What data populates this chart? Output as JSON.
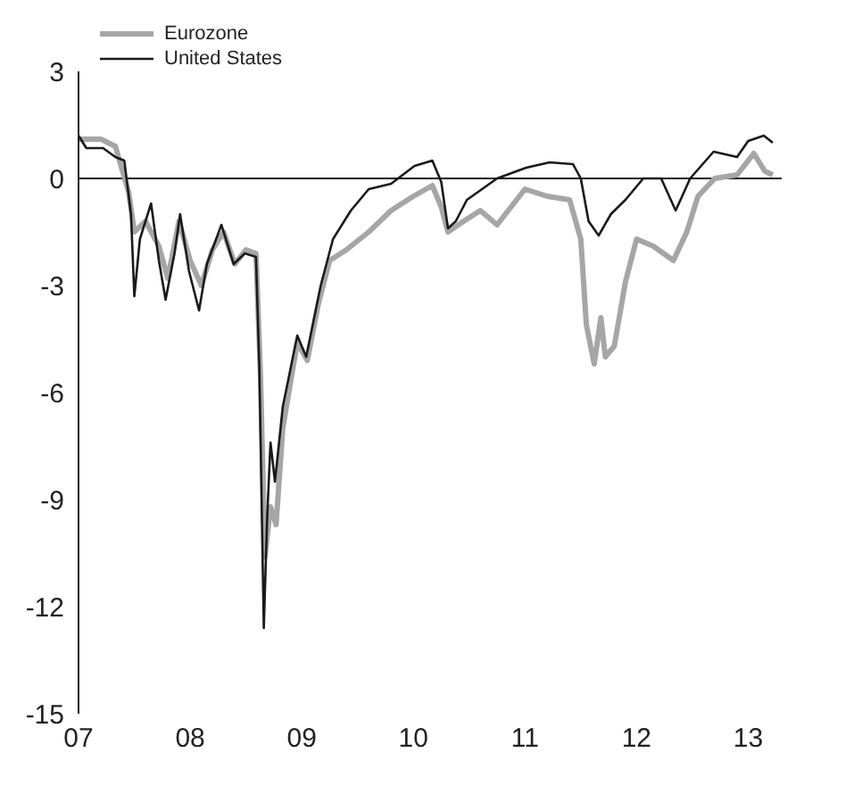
{
  "chart_data": {
    "type": "line",
    "xlim": [
      2007,
      2013.3
    ],
    "xticks": [
      {
        "value": 2007,
        "label": "07"
      },
      {
        "value": 2008,
        "label": "08"
      },
      {
        "value": 2009,
        "label": "09"
      },
      {
        "value": 2010,
        "label": "10"
      },
      {
        "value": 2011,
        "label": "11"
      },
      {
        "value": 2012,
        "label": "12"
      },
      {
        "value": 2013,
        "label": "13"
      }
    ],
    "ylim": [
      -15,
      3
    ],
    "yticks": [
      -15,
      -12,
      -9,
      -6,
      -3,
      0,
      3
    ],
    "grid": false,
    "legend": "top left",
    "marker": "none",
    "ref_lines": [
      {
        "axis": "y",
        "value": 0,
        "color": "#1a1a1a"
      }
    ],
    "series": [
      {
        "name": "Eurozone",
        "color": "#a6a6a6",
        "x": [
          2007.0,
          2007.2,
          2007.33,
          2007.45,
          2007.5,
          2007.6,
          2007.72,
          2007.8,
          2007.9,
          2008.0,
          2008.1,
          2008.2,
          2008.3,
          2008.4,
          2008.5,
          2008.59,
          2008.63,
          2008.67,
          2008.72,
          2008.77,
          2008.83,
          2008.96,
          2009.05,
          2009.15,
          2009.25,
          2009.4,
          2009.6,
          2009.8,
          2010.0,
          2010.17,
          2010.25,
          2010.31,
          2010.45,
          2010.6,
          2010.75,
          2010.9,
          2011.0,
          2011.2,
          2011.4,
          2011.5,
          2011.55,
          2011.62,
          2011.68,
          2011.72,
          2011.8,
          2011.9,
          2012.0,
          2012.15,
          2012.33,
          2012.45,
          2012.55,
          2012.7,
          2012.9,
          2013.05,
          2013.15,
          2013.22
        ],
        "values": [
          1.1,
          1.1,
          0.9,
          -0.4,
          -1.5,
          -1.2,
          -1.9,
          -2.8,
          -1.2,
          -2.3,
          -3.0,
          -2.0,
          -1.5,
          -2.4,
          -2.0,
          -2.1,
          -5.5,
          -10.6,
          -9.2,
          -9.7,
          -7.0,
          -4.6,
          -5.1,
          -3.5,
          -2.3,
          -2.0,
          -1.5,
          -0.9,
          -0.5,
          -0.2,
          -0.8,
          -1.5,
          -1.2,
          -0.9,
          -1.3,
          -0.7,
          -0.3,
          -0.5,
          -0.6,
          -1.7,
          -4.1,
          -5.2,
          -3.9,
          -5.0,
          -4.7,
          -2.9,
          -1.7,
          -1.9,
          -2.3,
          -1.5,
          -0.5,
          0.0,
          0.1,
          0.7,
          0.2,
          0.1
        ]
      },
      {
        "name": "United States",
        "color": "#1a1a1a",
        "x": [
          2007.0,
          2007.07,
          2007.22,
          2007.33,
          2007.41,
          2007.47,
          2007.5,
          2007.55,
          2007.65,
          2007.72,
          2007.78,
          2007.86,
          2007.91,
          2007.99,
          2008.08,
          2008.15,
          2008.28,
          2008.39,
          2008.49,
          2008.59,
          2008.62,
          2008.64,
          2008.66,
          2008.69,
          2008.72,
          2008.76,
          2008.83,
          2008.96,
          2009.04,
          2009.17,
          2009.28,
          2009.44,
          2009.6,
          2009.8,
          2010.01,
          2010.17,
          2010.25,
          2010.31,
          2010.38,
          2010.48,
          2010.75,
          2011.01,
          2011.22,
          2011.43,
          2011.5,
          2011.57,
          2011.66,
          2011.77,
          2011.9,
          2012.06,
          2012.22,
          2012.35,
          2012.48,
          2012.69,
          2012.9,
          2013.0,
          2013.14,
          2013.22
        ],
        "values": [
          1.2,
          0.85,
          0.85,
          0.6,
          0.5,
          -1.0,
          -3.3,
          -1.7,
          -0.7,
          -2.3,
          -3.4,
          -2.1,
          -1.0,
          -2.6,
          -3.7,
          -2.4,
          -1.3,
          -2.4,
          -2.1,
          -2.2,
          -5.3,
          -9.0,
          -12.6,
          -9.5,
          -7.4,
          -8.5,
          -6.4,
          -4.4,
          -5.0,
          -3.0,
          -1.7,
          -0.9,
          -0.3,
          -0.15,
          0.35,
          0.5,
          -0.1,
          -1.4,
          -1.2,
          -0.6,
          0.0,
          0.3,
          0.45,
          0.4,
          0.0,
          -1.2,
          -1.6,
          -1.0,
          -0.6,
          0.0,
          0.0,
          -0.9,
          0.0,
          0.75,
          0.6,
          1.05,
          1.2,
          1.0
        ]
      }
    ]
  }
}
